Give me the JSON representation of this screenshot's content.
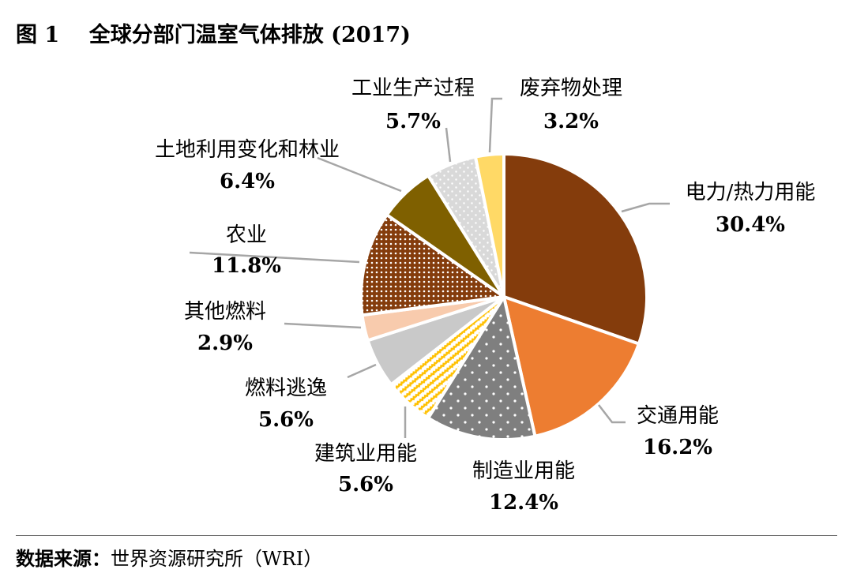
{
  "title": "图 1    全球分部门温室气体排放 (2017)",
  "source": {
    "label": "数据来源：",
    "text": "世界资源研究所（WRI）"
  },
  "chart_data": {
    "type": "pie",
    "title": "全球分部门温室气体排放 (2017)",
    "start": "12 o'clock, clockwise",
    "slices": [
      {
        "name": "电力/热力用能",
        "value": 30.4,
        "label": "30.4%",
        "color": "#843C0C",
        "pattern": "solid"
      },
      {
        "name": "交通用能",
        "value": 16.2,
        "label": "16.2%",
        "color": "#ED7D31",
        "pattern": "solid"
      },
      {
        "name": "制造业用能",
        "value": 12.4,
        "label": "12.4%",
        "color": "#7F7F7F",
        "pattern": "sparse-dots"
      },
      {
        "name": "建筑业用能",
        "value": 5.6,
        "label": "5.6%",
        "color": "#FFC000",
        "pattern": "zigzag"
      },
      {
        "name": "燃料逃逸",
        "value": 5.6,
        "label": "5.6%",
        "color": "#C9C9C9",
        "pattern": "solid"
      },
      {
        "name": "其他燃料",
        "value": 2.9,
        "label": "2.9%",
        "color": "#F8CBAD",
        "pattern": "solid"
      },
      {
        "name": "农业",
        "value": 11.8,
        "label": "11.8%",
        "color": "#843C0C",
        "pattern": "dense-dots"
      },
      {
        "name": "土地利用变化和林业",
        "value": 6.4,
        "label": "6.4%",
        "color": "#7F6000",
        "pattern": "solid"
      },
      {
        "name": "工业生产过程",
        "value": 5.7,
        "label": "5.7%",
        "color": "#D9D9D9",
        "pattern": "dots"
      },
      {
        "name": "废弃物处理",
        "value": 3.2,
        "label": "3.2%",
        "color": "#FFD966",
        "pattern": "solid"
      }
    ]
  }
}
